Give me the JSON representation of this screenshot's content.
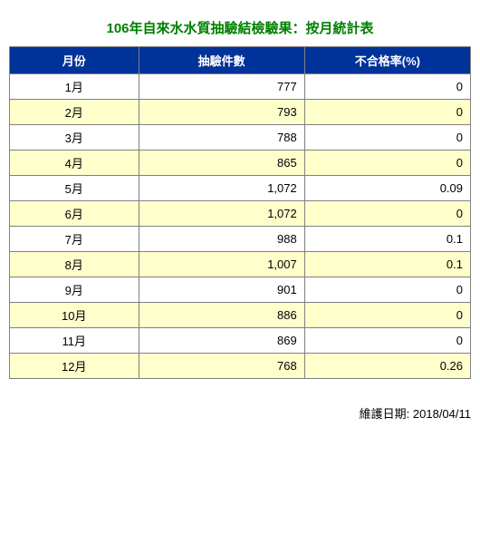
{
  "title": "106年自來水水質抽驗結檢驗果：按月統計表",
  "title_color": "#008000",
  "footer": "維護日期: 2018/04/11",
  "table": {
    "type": "table",
    "header_bg": "#003399",
    "header_text_color": "#ffffff",
    "border_color": "#808080",
    "row_bg_odd": "#ffffff",
    "row_bg_even": "#ffffcc",
    "columns": [
      {
        "label": "月份",
        "align": "center",
        "width": "28%"
      },
      {
        "label": "抽驗件數",
        "align": "right",
        "width": "36%"
      },
      {
        "label": "不合格率(%)",
        "align": "right",
        "width": "36%"
      }
    ],
    "rows": [
      {
        "month": "1月",
        "count": "777",
        "rate": "0"
      },
      {
        "month": "2月",
        "count": "793",
        "rate": "0"
      },
      {
        "month": "3月",
        "count": "788",
        "rate": "0"
      },
      {
        "month": "4月",
        "count": "865",
        "rate": "0"
      },
      {
        "month": "5月",
        "count": "1,072",
        "rate": "0.09"
      },
      {
        "month": "6月",
        "count": "1,072",
        "rate": "0"
      },
      {
        "month": "7月",
        "count": "988",
        "rate": "0.1"
      },
      {
        "month": "8月",
        "count": "1,007",
        "rate": "0.1"
      },
      {
        "month": "9月",
        "count": "901",
        "rate": "0"
      },
      {
        "month": "10月",
        "count": "886",
        "rate": "0"
      },
      {
        "month": "11月",
        "count": "869",
        "rate": "0"
      },
      {
        "month": "12月",
        "count": "768",
        "rate": "0.26"
      }
    ]
  }
}
